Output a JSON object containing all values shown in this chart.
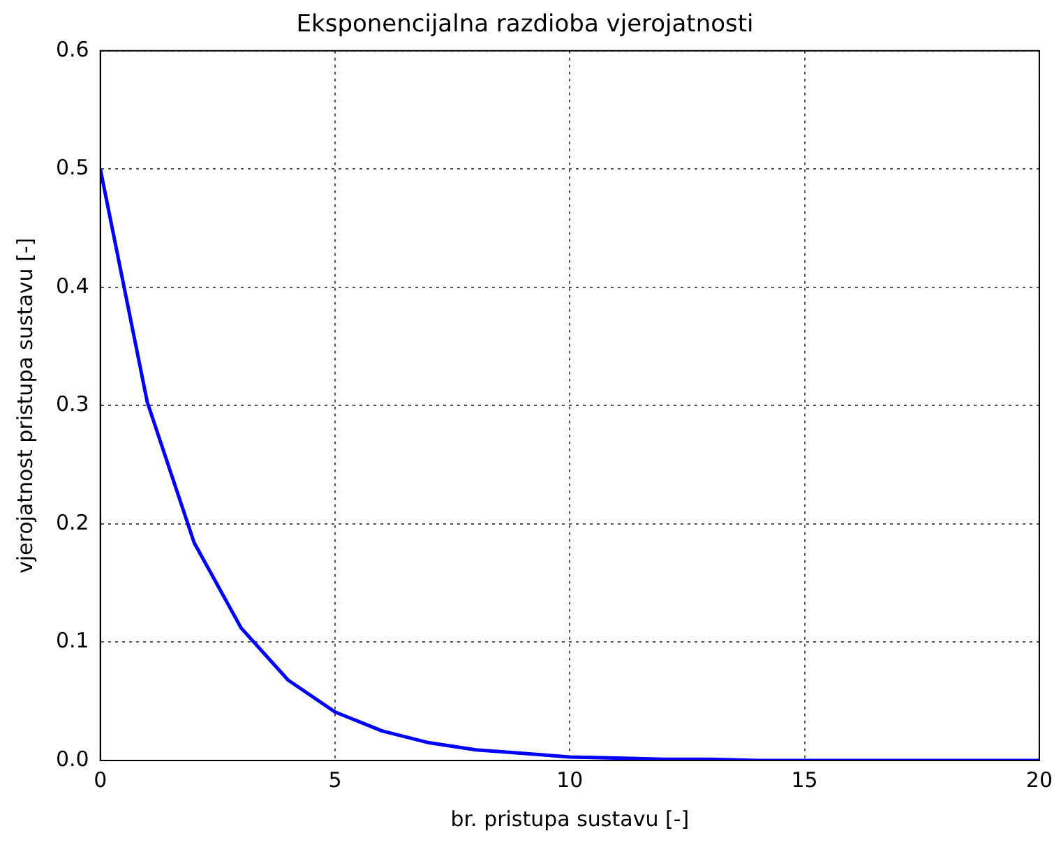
{
  "chart_data": {
    "type": "line",
    "title": "Eksponencijalna razdioba vjerojatnosti",
    "xlabel": "br. pristupa sustavu [-]",
    "ylabel": "vjerojatnost pristupa sustavu [-]",
    "x": [
      0,
      1,
      2,
      3,
      4,
      5,
      6,
      7,
      8,
      9,
      10,
      11,
      12,
      13,
      14,
      15,
      16,
      17,
      18,
      19,
      20
    ],
    "series": [
      {
        "color": "#0000ff",
        "values": [
          0.5,
          0.303,
          0.184,
          0.112,
          0.068,
          0.041,
          0.025,
          0.015,
          0.009,
          0.006,
          0.003,
          0.002,
          0.001,
          0.001,
          0,
          0,
          0,
          0,
          0,
          0,
          0
        ]
      }
    ],
    "xlim": [
      0,
      20
    ],
    "xticks": [
      0,
      5,
      10,
      15,
      20
    ],
    "ylim": [
      0,
      0.6
    ],
    "yticks": [
      {
        "value": 0,
        "label": "0.0"
      },
      0.1,
      0.2,
      0.3,
      0.4,
      0.5,
      0.6
    ],
    "grid": true,
    "legend": false,
    "marker": "none",
    "line_style": "solid"
  }
}
